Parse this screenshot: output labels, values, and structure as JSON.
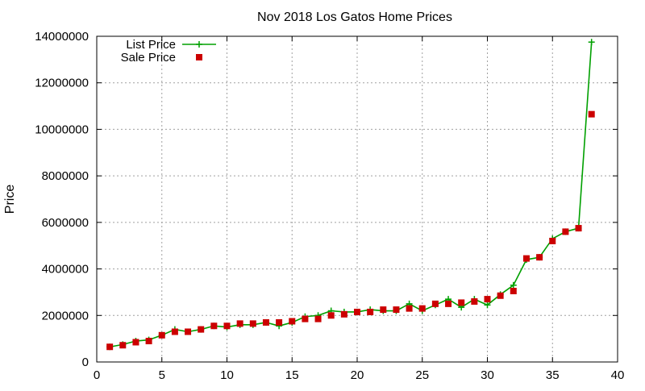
{
  "chart_data": {
    "type": "line",
    "title": "Nov 2018 Los Gatos Home Prices",
    "xlabel": "",
    "ylabel": "Price",
    "xlim": [
      0,
      40
    ],
    "ylim": [
      0,
      14000000
    ],
    "x_ticks": [
      "0",
      "5",
      "10",
      "15",
      "20",
      "25",
      "30",
      "35",
      "40"
    ],
    "y_ticks": [
      "0",
      "2000000",
      "4000000",
      "6000000",
      "8000000",
      "10000000",
      "12000000",
      "14000000"
    ],
    "grid": true,
    "legend_position": "top-left",
    "series": [
      {
        "name": "List Price",
        "color": "#00a000",
        "marker": "plus",
        "line": true,
        "x": [
          1,
          2,
          3,
          4,
          5,
          6,
          7,
          8,
          9,
          10,
          11,
          12,
          13,
          14,
          15,
          16,
          17,
          18,
          19,
          20,
          21,
          22,
          23,
          24,
          25,
          26,
          27,
          28,
          29,
          30,
          31,
          32,
          33,
          34,
          35,
          36,
          37,
          38
        ],
        "y": [
          650000,
          750000,
          900000,
          950000,
          1150000,
          1400000,
          1300000,
          1400000,
          1550000,
          1500000,
          1600000,
          1600000,
          1700000,
          1550000,
          1700000,
          1950000,
          2000000,
          2200000,
          2150000,
          2150000,
          2250000,
          2200000,
          2200000,
          2500000,
          2200000,
          2450000,
          2700000,
          2350000,
          2700000,
          2450000,
          2900000,
          3300000,
          4400000,
          4500000,
          5300000,
          5600000,
          5750000,
          13750000
        ]
      },
      {
        "name": "Sale Price",
        "color": "#cc0000",
        "marker": "square",
        "line": false,
        "x": [
          1,
          2,
          3,
          4,
          5,
          6,
          7,
          8,
          9,
          10,
          11,
          12,
          13,
          14,
          15,
          16,
          17,
          18,
          19,
          20,
          21,
          22,
          23,
          24,
          25,
          26,
          27,
          28,
          29,
          30,
          31,
          32,
          33,
          34,
          35,
          36,
          37,
          38
        ],
        "y": [
          650000,
          720000,
          850000,
          900000,
          1150000,
          1300000,
          1300000,
          1400000,
          1550000,
          1550000,
          1650000,
          1650000,
          1700000,
          1700000,
          1750000,
          1850000,
          1850000,
          2000000,
          2050000,
          2150000,
          2150000,
          2250000,
          2250000,
          2300000,
          2300000,
          2500000,
          2500000,
          2550000,
          2600000,
          2700000,
          2850000,
          3050000,
          4450000,
          4500000,
          5200000,
          5600000,
          5750000,
          10650000
        ]
      }
    ]
  }
}
